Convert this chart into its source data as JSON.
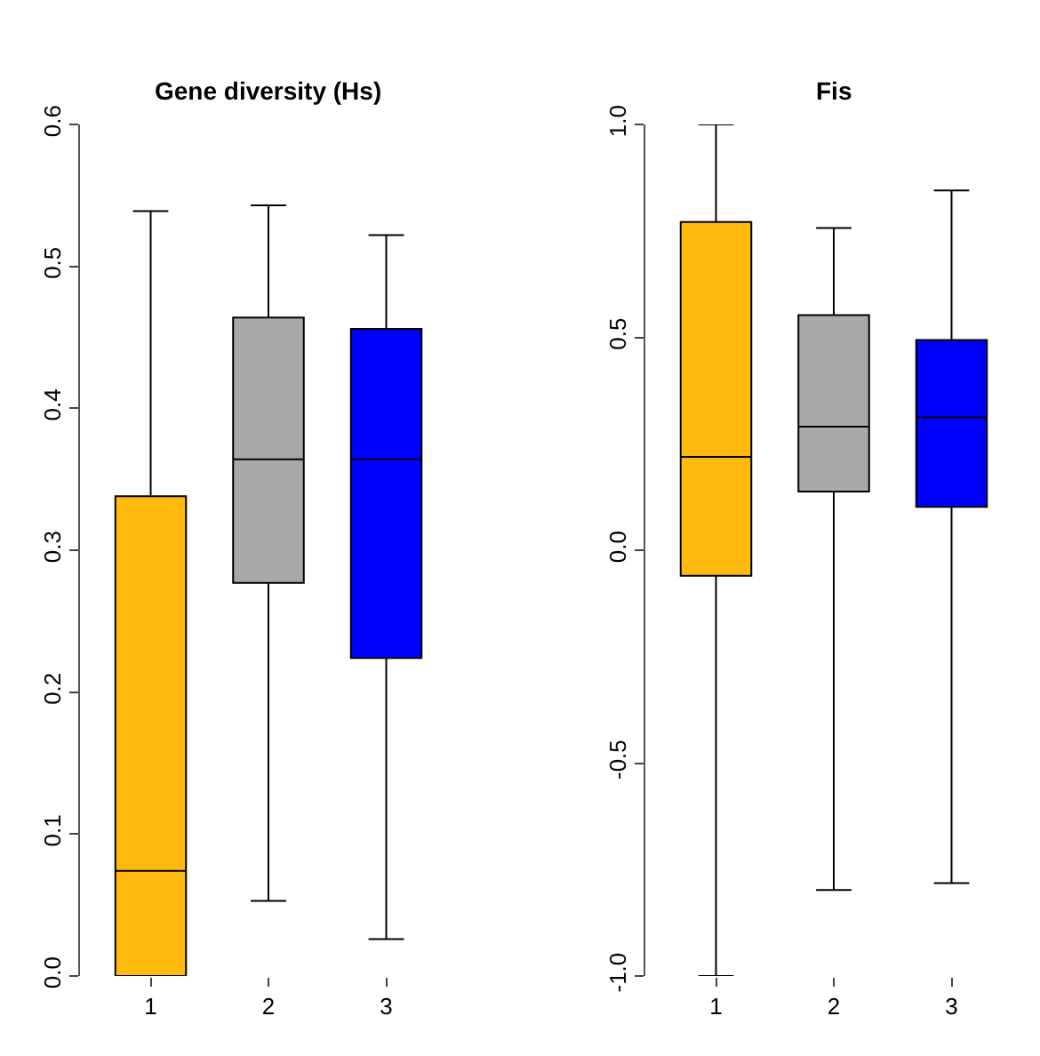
{
  "chart_data": [
    {
      "type": "box",
      "title": "Gene diversity (Hs)",
      "categories": [
        "1",
        "2",
        "3"
      ],
      "colors": [
        "#ffb90f",
        "#a9a9a9",
        "#0000ff"
      ],
      "boxes": [
        {
          "low": 0.0,
          "q1": 0.0,
          "median": 0.074,
          "q3": 0.338,
          "high": 0.539
        },
        {
          "low": 0.053,
          "q1": 0.277,
          "median": 0.364,
          "q3": 0.464,
          "high": 0.543
        },
        {
          "low": 0.026,
          "q1": 0.224,
          "median": 0.364,
          "q3": 0.456,
          "high": 0.522
        }
      ],
      "ylim": [
        0,
        0.6
      ],
      "yticks": [
        {
          "value": 0,
          "label": "0.0"
        },
        0.1,
        0.2,
        0.3,
        0.4,
        0.5,
        0.6
      ]
    },
    {
      "type": "box",
      "title": "Fis",
      "categories": [
        "1",
        "2",
        "3"
      ],
      "colors": [
        "#ffb90f",
        "#a9a9a9",
        "#0000ff"
      ],
      "boxes": [
        {
          "low": -1.0,
          "q1": -0.06,
          "median": 0.219,
          "q3": 0.771,
          "high": 1.0
        },
        {
          "low": -0.798,
          "q1": 0.138,
          "median": 0.29,
          "q3": 0.552,
          "high": 0.757
        },
        {
          "low": -0.782,
          "q1": 0.102,
          "median": 0.312,
          "q3": 0.494,
          "high": 0.845
        }
      ],
      "ylim": [
        -1,
        1
      ],
      "yticks": [
        {
          "value": -1,
          "label": "-1.0"
        },
        -0.5,
        {
          "value": 0,
          "label": "0.0"
        },
        0.5,
        {
          "value": 1,
          "label": "1.0"
        }
      ]
    }
  ]
}
